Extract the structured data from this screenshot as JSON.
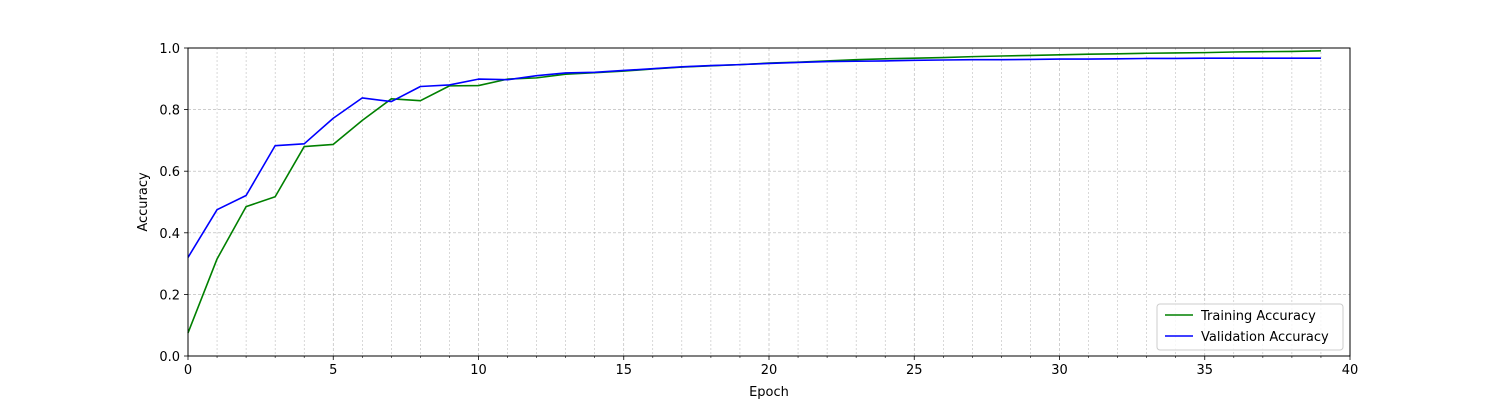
{
  "chart_data": {
    "type": "line",
    "title": "",
    "xlabel": "Epoch",
    "ylabel": "Accuracy",
    "xlim": [
      0,
      40
    ],
    "ylim": [
      0,
      1.0
    ],
    "xticks": [
      0,
      5,
      10,
      15,
      20,
      25,
      30,
      35,
      40
    ],
    "yticks": [
      0.0,
      0.2,
      0.4,
      0.6,
      0.8,
      1.0
    ],
    "ytick_labels": [
      "0.0",
      "0.2",
      "0.4",
      "0.6",
      "0.8",
      "1.0"
    ],
    "grid": true,
    "minor_grid": true,
    "legend_position": "lower-right",
    "x": [
      0,
      1,
      2,
      3,
      4,
      5,
      6,
      7,
      8,
      9,
      10,
      11,
      12,
      13,
      14,
      15,
      16,
      17,
      18,
      19,
      20,
      21,
      22,
      23,
      24,
      25,
      26,
      27,
      28,
      29,
      30,
      31,
      32,
      33,
      34,
      35,
      36,
      37,
      38,
      39
    ],
    "series": [
      {
        "name": "Training Accuracy",
        "color": "#008000",
        "values": [
          0.075,
          0.315,
          0.485,
          0.517,
          0.68,
          0.687,
          0.765,
          0.835,
          0.829,
          0.877,
          0.878,
          0.899,
          0.903,
          0.915,
          0.92,
          0.925,
          0.932,
          0.938,
          0.942,
          0.946,
          0.951,
          0.954,
          0.958,
          0.962,
          0.965,
          0.967,
          0.969,
          0.972,
          0.974,
          0.976,
          0.978,
          0.98,
          0.981,
          0.983,
          0.984,
          0.985,
          0.987,
          0.988,
          0.989,
          0.991
        ]
      },
      {
        "name": "Validation Accuracy",
        "color": "#0000ff",
        "values": [
          0.32,
          0.475,
          0.521,
          0.683,
          0.689,
          0.772,
          0.838,
          0.826,
          0.875,
          0.88,
          0.899,
          0.897,
          0.91,
          0.919,
          0.921,
          0.927,
          0.933,
          0.939,
          0.943,
          0.946,
          0.95,
          0.953,
          0.956,
          0.957,
          0.958,
          0.96,
          0.961,
          0.962,
          0.962,
          0.963,
          0.964,
          0.964,
          0.965,
          0.966,
          0.966,
          0.967,
          0.967,
          0.967,
          0.967,
          0.967
        ]
      }
    ]
  }
}
